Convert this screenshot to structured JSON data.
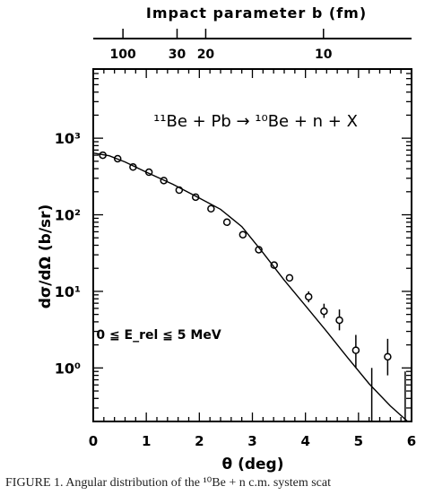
{
  "chart_data": {
    "type": "scatter",
    "top_axis_label": "Impact parameter b (fm)",
    "top_ticks": [
      {
        "label": "100",
        "theta": 0.56
      },
      {
        "label": "30",
        "theta": 1.58
      },
      {
        "label": "20",
        "theta": 2.12
      },
      {
        "label": "10",
        "theta": 4.34
      }
    ],
    "xlabel": "θ (deg)",
    "ylabel": "dσ/dΩ (b/sr)",
    "x_ticks": [
      "0",
      "1",
      "2",
      "3",
      "4",
      "5",
      "6"
    ],
    "y_ticks": [
      "10⁰",
      "10¹",
      "10²",
      "10³"
    ],
    "xlim": [
      0,
      6
    ],
    "ylim": [
      0.2,
      8000
    ],
    "yscale": "log",
    "reaction": {
      "text": "¹¹Be + Pb → ¹⁰Be + n + X"
    },
    "energy_cut": {
      "text": "0 ≦ E_rel ≦ 5 MeV"
    },
    "series": [
      {
        "kind": "points",
        "x": [
          0.18,
          0.46,
          0.75,
          1.05,
          1.33,
          1.62,
          1.93,
          2.22,
          2.52,
          2.82,
          3.12,
          3.41,
          3.7,
          4.06,
          4.35,
          4.64,
          4.95,
          5.55
        ],
        "y": [
          600,
          540,
          420,
          360,
          280,
          210,
          170,
          120,
          80,
          55,
          35,
          22,
          15,
          8.5,
          5.5,
          4.2,
          1.7,
          1.4
        ],
        "err_low": [
          0,
          0,
          0,
          0,
          0,
          0,
          0,
          0,
          0,
          0,
          0,
          0,
          0,
          1.3,
          1.0,
          1.1,
          0.7,
          0.6
        ],
        "err_high": [
          0,
          0,
          0,
          0,
          0,
          0,
          0,
          0,
          0,
          0,
          0,
          0,
          0,
          1.5,
          1.4,
          1.6,
          1.0,
          1.0
        ]
      },
      {
        "kind": "bars_only",
        "x": [
          5.25,
          5.88
        ],
        "y_high": [
          1.0,
          0.9
        ]
      },
      {
        "kind": "line",
        "x": [
          0,
          0.3,
          0.6,
          1.0,
          1.5,
          2.0,
          2.4,
          2.8,
          3.2,
          3.6,
          4.0,
          4.4,
          4.8,
          5.2,
          5.6,
          6.0
        ],
        "y": [
          640,
          590,
          490,
          360,
          250,
          165,
          118,
          70,
          32,
          14,
          6.5,
          3.0,
          1.35,
          0.62,
          0.32,
          0.18
        ]
      }
    ]
  },
  "caption": "FIGURE 1. Angular distribution of the ¹⁰Be + n c.m. system scat"
}
